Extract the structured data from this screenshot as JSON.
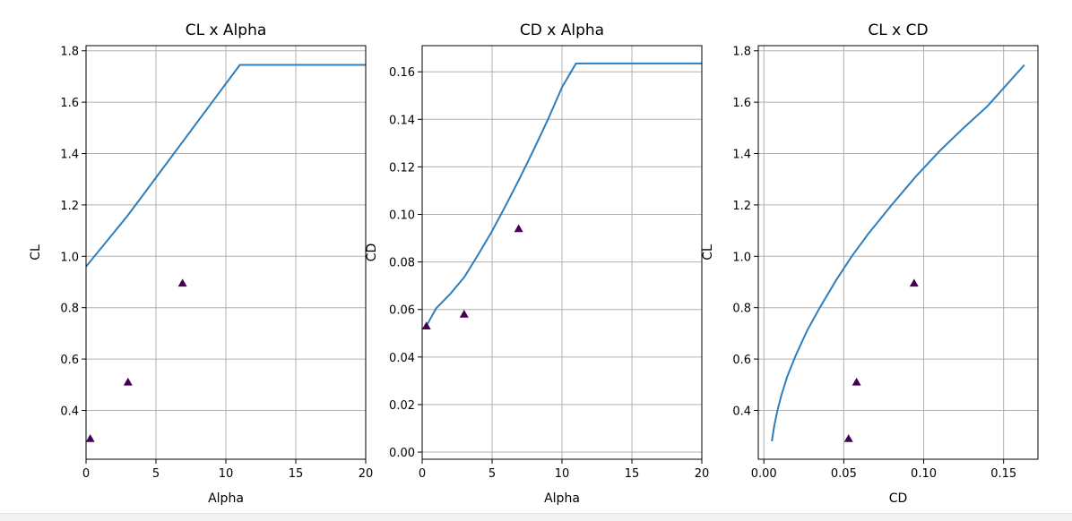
{
  "style": {
    "line_color": "#2e7ebc",
    "marker_color": "#440154",
    "grid_color": "#b0b0b0",
    "axes_color": "#000000"
  },
  "chart_data": [
    {
      "type": "line",
      "title": "CL x Alpha",
      "xlabel": "Alpha",
      "ylabel": "CL",
      "xlim": [
        0,
        20
      ],
      "ylim": [
        0.21,
        1.82
      ],
      "xticks": [
        0,
        5,
        10,
        15,
        20
      ],
      "xtick_labels": [
        "0",
        "5",
        "10",
        "15",
        "20"
      ],
      "yticks": [
        0.4,
        0.6,
        0.8,
        1.0,
        1.2,
        1.4,
        1.6,
        1.8
      ],
      "ytick_labels": [
        "0.4",
        "0.6",
        "0.8",
        "1.0",
        "1.2",
        "1.4",
        "1.6",
        "1.8"
      ],
      "grid": true,
      "series": [
        {
          "kind": "line",
          "x": [
            0,
            3,
            11,
            20
          ],
          "y": [
            0.96,
            1.16,
            1.745,
            1.745
          ]
        },
        {
          "kind": "scatter",
          "marker": "triangle",
          "x": [
            0.3,
            3.0,
            6.9
          ],
          "y": [
            0.29,
            0.51,
            0.895
          ]
        }
      ]
    },
    {
      "type": "line",
      "title": "CD x Alpha",
      "xlabel": "Alpha",
      "ylabel": "CD",
      "xlim": [
        0,
        20
      ],
      "ylim": [
        -0.003,
        0.171
      ],
      "xticks": [
        0,
        5,
        10,
        15,
        20
      ],
      "xtick_labels": [
        "0",
        "5",
        "10",
        "15",
        "20"
      ],
      "yticks": [
        0.0,
        0.02,
        0.04,
        0.06,
        0.08,
        0.1,
        0.12,
        0.14,
        0.16
      ],
      "ytick_labels": [
        "0.00",
        "0.02",
        "0.04",
        "0.06",
        "0.08",
        "0.10",
        "0.12",
        "0.14",
        "0.16"
      ],
      "grid": true,
      "series": [
        {
          "kind": "line",
          "x": [
            0.3,
            1,
            2,
            3,
            4,
            5,
            6,
            7,
            8,
            9,
            10,
            11,
            20
          ],
          "y": [
            0.053,
            0.0605,
            0.0665,
            0.0735,
            0.083,
            0.093,
            0.104,
            0.1155,
            0.1275,
            0.14,
            0.1535,
            0.1635,
            0.1635
          ]
        },
        {
          "kind": "scatter",
          "marker": "triangle",
          "x": [
            0.3,
            3.0,
            6.9
          ],
          "y": [
            0.053,
            0.058,
            0.094
          ]
        }
      ]
    },
    {
      "type": "line",
      "title": "CL x CD",
      "xlabel": "CD",
      "ylabel": "CL",
      "xlim": [
        -0.0035,
        0.1715
      ],
      "ylim": [
        0.21,
        1.82
      ],
      "xticks": [
        0.0,
        0.05,
        0.1,
        0.15
      ],
      "xtick_labels": [
        "0.00",
        "0.05",
        "0.10",
        "0.15"
      ],
      "yticks": [
        0.4,
        0.6,
        0.8,
        1.0,
        1.2,
        1.4,
        1.6,
        1.8
      ],
      "ytick_labels": [
        "0.4",
        "0.6",
        "0.8",
        "1.0",
        "1.2",
        "1.4",
        "1.6",
        "1.8"
      ],
      "grid": true,
      "series": [
        {
          "kind": "line",
          "x": [
            0.005,
            0.0065,
            0.0085,
            0.011,
            0.0145,
            0.02,
            0.027,
            0.035,
            0.045,
            0.055,
            0.065,
            0.08,
            0.095,
            0.11,
            0.125,
            0.14,
            0.163
          ],
          "y": [
            0.28,
            0.34,
            0.4,
            0.46,
            0.53,
            0.615,
            0.71,
            0.8,
            0.905,
            1.0,
            1.085,
            1.2,
            1.31,
            1.41,
            1.5,
            1.585,
            1.745
          ]
        },
        {
          "kind": "scatter",
          "marker": "triangle",
          "x": [
            0.053,
            0.058,
            0.094
          ],
          "y": [
            0.29,
            0.51,
            0.895
          ]
        }
      ]
    }
  ]
}
